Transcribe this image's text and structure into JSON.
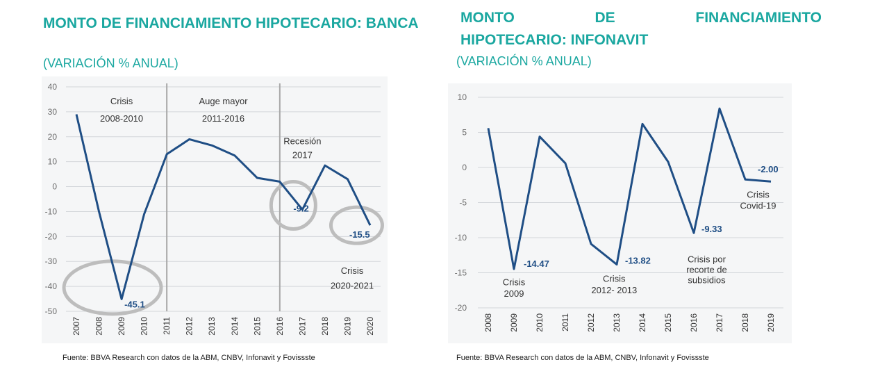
{
  "left_chart": {
    "title": "MONTO DE FINANCIAMIENTO HIPOTECARIO: BANCA",
    "subtitle": "(VARIACIÓN  % ANUAL)",
    "source": "Fuente: BBVA Research  con datos de la ABM, CNBV, Infonavit  y Fovissste"
  },
  "right_chart": {
    "title_line1_words": [
      "MONTO",
      "DE",
      "FINANCIAMIENTO"
    ],
    "title_line2": "HIPOTECARIO: INFONAVIT",
    "subtitle": "(VARIACIÓN  % ANUAL)",
    "source": "Fuente: BBVA Research  con datos de la ABM, CNBV, Infonavit  y Fovissste"
  },
  "chart_data": [
    {
      "type": "line",
      "x": [
        "2007",
        "2008",
        "2009",
        "2010",
        "2011",
        "2012",
        "2013",
        "2014",
        "2015",
        "2016",
        "2017",
        "2018",
        "2019",
        "2020"
      ],
      "series": [
        {
          "values": [
            29,
            -10,
            -45.1,
            -11,
            13,
            19,
            16.5,
            12.5,
            3.5,
            2,
            -9.2,
            8.5,
            3,
            -15.5
          ]
        }
      ],
      "ylim": [
        -50,
        40
      ],
      "yticks": [
        40,
        30,
        20,
        10,
        0,
        -10,
        -20,
        -30,
        -40,
        -50
      ],
      "grid": true,
      "line_color": "#1f4e85",
      "vlines_after": [
        "2011",
        "2016"
      ],
      "annotations": [
        {
          "text": "Crisis",
          "x": "2009",
          "y": 33
        },
        {
          "text": "2008-2010",
          "x": "2009",
          "y": 26
        },
        {
          "text": "Auge mayor",
          "x": "2013.5",
          "y": 33
        },
        {
          "text": "2011-2016",
          "x": "2013.5",
          "y": 26
        },
        {
          "text": "Recesión",
          "x": "2017",
          "y": 17
        },
        {
          "text": "2017",
          "x": "2017",
          "y": 11.5
        },
        {
          "text": "Crisis",
          "x": "2019.2",
          "y": -35
        },
        {
          "text": "2020-2021",
          "x": "2019.2",
          "y": -41
        }
      ],
      "data_labels": [
        {
          "text": "-45.1",
          "x": "2009",
          "y": -45.1
        },
        {
          "text": "-9.2",
          "x": "2017",
          "y": -9.2
        },
        {
          "text": "-15.5",
          "x": "2020",
          "y": -15.5
        }
      ]
    },
    {
      "type": "line",
      "x": [
        "2008",
        "2009",
        "2010",
        "2011",
        "2012",
        "2013",
        "2014",
        "2015",
        "2016",
        "2017",
        "2018",
        "2019"
      ],
      "series": [
        {
          "values": [
            5.6,
            -14.47,
            4.4,
            0.6,
            -10.9,
            -13.82,
            6.2,
            0.8,
            -9.33,
            8.4,
            -1.7,
            -2.0
          ]
        }
      ],
      "ylim": [
        -20,
        10
      ],
      "yticks": [
        10,
        5,
        0,
        -5,
        -10,
        -15,
        -20
      ],
      "grid": true,
      "line_color": "#1f4e85",
      "annotations": [
        {
          "text": "Crisis",
          "x": "2009",
          "y": -16.8
        },
        {
          "text": "2009",
          "x": "2009",
          "y": -18.4
        },
        {
          "text": "Crisis",
          "x": "2012.9",
          "y": -16.3
        },
        {
          "text": "2012- 2013",
          "x": "2012.9",
          "y": -17.9
        },
        {
          "text": "Crisis por",
          "x": "2016.5",
          "y": -13.5
        },
        {
          "text": "recorte de",
          "x": "2016.5",
          "y": -15.0
        },
        {
          "text": "subsidios",
          "x": "2016.5",
          "y": -16.5
        },
        {
          "text": "Crisis",
          "x": "2018.5",
          "y": -4.3
        },
        {
          "text": "Covid-19",
          "x": "2018.5",
          "y": -5.9
        }
      ],
      "data_labels": [
        {
          "text": "-14.47",
          "x": "2009",
          "y": -14.47
        },
        {
          "text": "-13.82",
          "x": "2013",
          "y": -13.82
        },
        {
          "text": "-9.33",
          "x": "2016",
          "y": -9.33
        },
        {
          "text": "-2.00",
          "x": "2019",
          "y": -2.0
        }
      ]
    }
  ]
}
